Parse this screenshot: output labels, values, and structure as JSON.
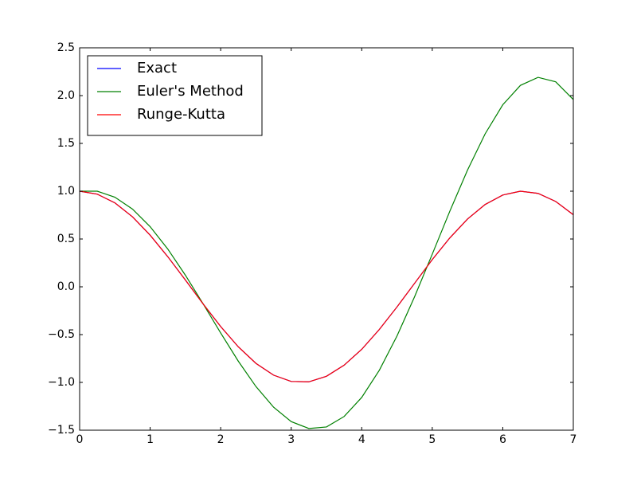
{
  "chart_data": {
    "type": "line",
    "x": [
      0,
      0.25,
      0.5,
      0.75,
      1,
      1.25,
      1.5,
      1.75,
      2,
      2.25,
      2.5,
      2.75,
      3,
      3.25,
      3.5,
      3.75,
      4,
      4.25,
      4.5,
      4.75,
      5,
      5.25,
      5.5,
      5.75,
      6,
      6.25,
      6.5,
      6.75,
      7
    ],
    "series": [
      {
        "name": "Exact",
        "color": "#0000ff",
        "values": [
          1,
          0.969,
          0.878,
          0.732,
          0.54,
          0.315,
          0.071,
          -0.178,
          -0.416,
          -0.628,
          -0.801,
          -0.924,
          -0.99,
          -0.994,
          -0.936,
          -0.82,
          -0.654,
          -0.446,
          -0.211,
          0.037,
          0.284,
          0.512,
          0.709,
          0.861,
          0.96,
          1,
          0.977,
          0.893,
          0.754
        ]
      },
      {
        "name": "Euler's Method",
        "color": "#008000",
        "values": [
          1,
          1,
          0.9375,
          0.8125,
          0.629,
          0.395,
          0.121,
          -0.177,
          -0.483,
          -0.778,
          -1.043,
          -1.259,
          -1.41,
          -1.482,
          -1.466,
          -1.357,
          -1.157,
          -0.872,
          -0.515,
          -0.103,
          0.341,
          0.792,
          1.221,
          1.6,
          1.904,
          2.107,
          2.191,
          2.144,
          1.959
        ]
      },
      {
        "name": "Runge-Kutta",
        "color": "#ff0000",
        "values": [
          1,
          0.969,
          0.878,
          0.732,
          0.54,
          0.315,
          0.071,
          -0.178,
          -0.416,
          -0.628,
          -0.801,
          -0.924,
          -0.99,
          -0.994,
          -0.936,
          -0.82,
          -0.654,
          -0.446,
          -0.211,
          0.037,
          0.284,
          0.512,
          0.709,
          0.861,
          0.96,
          1,
          0.977,
          0.893,
          0.754
        ]
      }
    ],
    "xlim": [
      0,
      7
    ],
    "xticks": [
      0,
      1,
      2,
      3,
      4,
      5,
      6,
      7
    ],
    "ylim": [
      -1.5,
      2.5
    ],
    "yticks": [
      {
        "value": -1.5,
        "label": "−1.5"
      },
      {
        "value": -1,
        "label": "−1.0"
      },
      {
        "value": -0.5,
        "label": "−0.5"
      },
      {
        "value": 0,
        "label": "0.0"
      },
      0.5,
      {
        "value": 1,
        "label": "1.0"
      },
      1.5,
      {
        "value": 2,
        "label": "2.0"
      },
      2.5
    ],
    "legend": "upper left"
  }
}
